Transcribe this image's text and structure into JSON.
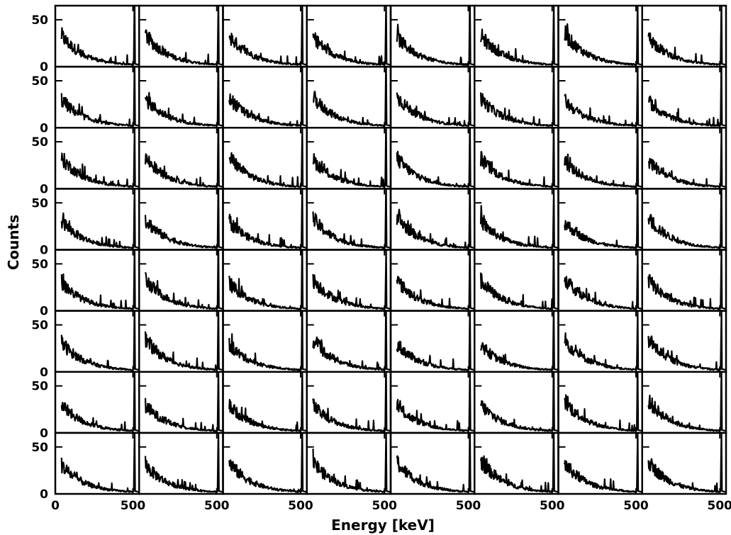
{
  "chart_data": {
    "type": "line",
    "layout": "8x8 grid of small multiples",
    "rows": 8,
    "cols": 8,
    "xlabel": "Energy [keV]",
    "ylabel": "Counts",
    "x_ticks": [
      0,
      500
    ],
    "x_tick_labels": [
      "0",
      "500"
    ],
    "y_ticks": [
      0,
      50
    ],
    "y_tick_labels": [
      "0",
      "50"
    ],
    "xlim": [
      0,
      540
    ],
    "ylim": [
      0,
      65
    ],
    "series_shape": {
      "description": "gamma energy spectrum per panel",
      "x_start": 40,
      "x_end": 540,
      "counts_at_start": 30,
      "decay_scale_kev": 200,
      "background_counts": 2,
      "peak_energy": 511,
      "peak_counts": 65
    },
    "grid": false,
    "legend": "none"
  }
}
